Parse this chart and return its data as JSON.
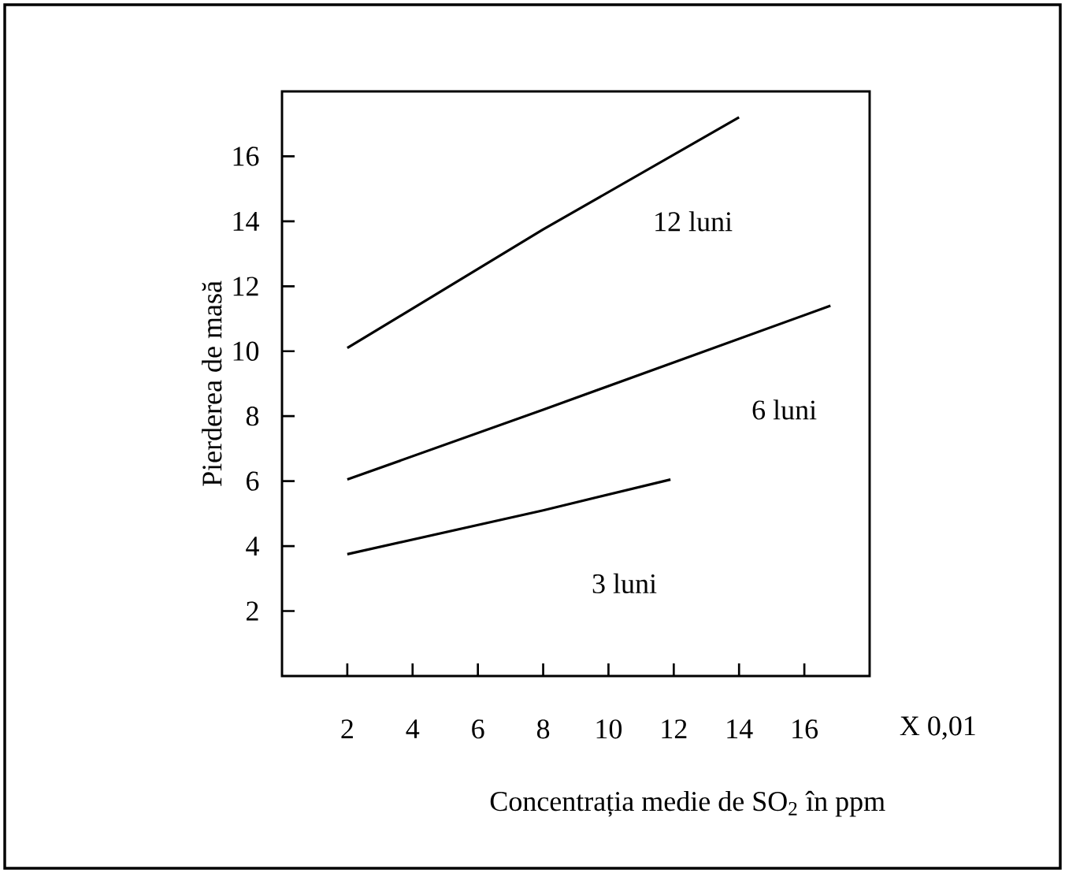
{
  "chart_data": {
    "type": "line",
    "xlabel": "Concentrația medie de SO$_{2}$ în ppm",
    "ylabel": "Pierderea de masă",
    "xlim": [
      0,
      18
    ],
    "ylim": [
      0,
      18
    ],
    "xticks": [
      2,
      4,
      6,
      8,
      10,
      12,
      14,
      16
    ],
    "yticks": [
      2,
      4,
      6,
      8,
      10,
      12,
      14,
      16
    ],
    "series": [
      {
        "name": "12 luni",
        "color": "#000000",
        "x": [
          2,
          8,
          14
        ],
        "values": [
          10.1,
          13.75,
          17.2
        ]
      },
      {
        "name": "6 luni",
        "color": "#000000",
        "x": [
          2,
          8,
          16.8
        ],
        "values": [
          6.05,
          8.2,
          11.4
        ]
      },
      {
        "name": "3 luni",
        "color": "#000000",
        "x": [
          2,
          8,
          11.9
        ],
        "values": [
          3.75,
          5.1,
          6.05
        ]
      }
    ],
    "annotations": [
      "X 0,01"
    ]
  }
}
